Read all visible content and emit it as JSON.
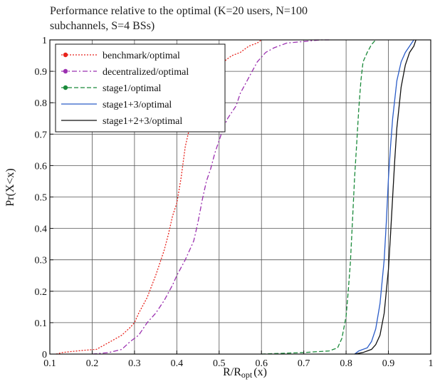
{
  "chart_data": {
    "type": "line",
    "title_lines": [
      "Performance relative to the optimal (K=20 users, N=100",
      "subchannels, S=4 BSs)"
    ],
    "xlabel_main": "R/R",
    "xlabel_sub": "opt",
    "xlabel_tail": "(x)",
    "ylabel": "Pr(X<x)",
    "xlim": [
      0.1,
      1
    ],
    "ylim": [
      0,
      1
    ],
    "grid": true,
    "legend_position": "top-left",
    "x_ticks": [
      "0.1",
      "0.2",
      "0.3",
      "0.4",
      "0.5",
      "0.6",
      "0.7",
      "0.8",
      "0.9",
      "1"
    ],
    "y_ticks": [
      "0",
      "0.1",
      "0.2",
      "0.3",
      "0.4",
      "0.5",
      "0.6",
      "0.7",
      "0.8",
      "0.9",
      "1"
    ],
    "series": [
      {
        "name": "benchmark/optimal",
        "color": "#e8231c",
        "style": "dotted",
        "legend_marker": true,
        "points": [
          [
            0.115,
            0.0
          ],
          [
            0.13,
            0.005
          ],
          [
            0.15,
            0.008
          ],
          [
            0.18,
            0.012
          ],
          [
            0.21,
            0.015
          ],
          [
            0.23,
            0.03
          ],
          [
            0.25,
            0.045
          ],
          [
            0.27,
            0.06
          ],
          [
            0.29,
            0.085
          ],
          [
            0.3,
            0.1
          ],
          [
            0.31,
            0.13
          ],
          [
            0.33,
            0.18
          ],
          [
            0.35,
            0.25
          ],
          [
            0.36,
            0.29
          ],
          [
            0.37,
            0.33
          ],
          [
            0.38,
            0.38
          ],
          [
            0.39,
            0.44
          ],
          [
            0.4,
            0.48
          ],
          [
            0.41,
            0.56
          ],
          [
            0.42,
            0.66
          ],
          [
            0.43,
            0.72
          ],
          [
            0.44,
            0.79
          ],
          [
            0.45,
            0.84
          ],
          [
            0.47,
            0.88
          ],
          [
            0.49,
            0.91
          ],
          [
            0.51,
            0.93
          ],
          [
            0.53,
            0.95
          ],
          [
            0.55,
            0.96
          ],
          [
            0.57,
            0.98
          ],
          [
            0.59,
            0.99
          ],
          [
            0.6,
            1.0
          ]
        ]
      },
      {
        "name": "decentralized/optimal",
        "color": "#9b30b0",
        "style": "dashdot",
        "legend_marker": true,
        "points": [
          [
            0.2,
            0.0
          ],
          [
            0.24,
            0.005
          ],
          [
            0.27,
            0.015
          ],
          [
            0.29,
            0.04
          ],
          [
            0.31,
            0.06
          ],
          [
            0.33,
            0.1
          ],
          [
            0.35,
            0.13
          ],
          [
            0.37,
            0.17
          ],
          [
            0.39,
            0.22
          ],
          [
            0.4,
            0.25
          ],
          [
            0.42,
            0.3
          ],
          [
            0.44,
            0.36
          ],
          [
            0.45,
            0.42
          ],
          [
            0.46,
            0.49
          ],
          [
            0.47,
            0.55
          ],
          [
            0.48,
            0.59
          ],
          [
            0.49,
            0.64
          ],
          [
            0.5,
            0.68
          ],
          [
            0.51,
            0.72
          ],
          [
            0.52,
            0.75
          ],
          [
            0.54,
            0.79
          ],
          [
            0.55,
            0.83
          ],
          [
            0.57,
            0.88
          ],
          [
            0.59,
            0.93
          ],
          [
            0.61,
            0.96
          ],
          [
            0.63,
            0.975
          ],
          [
            0.66,
            0.99
          ],
          [
            0.7,
            0.995
          ],
          [
            0.74,
            1.0
          ],
          [
            0.76,
            1.0
          ]
        ]
      },
      {
        "name": "stage1/optimal",
        "color": "#1a8a3a",
        "style": "dashed",
        "legend_marker": true,
        "points": [
          [
            0.6,
            0.0
          ],
          [
            0.7,
            0.005
          ],
          [
            0.76,
            0.01
          ],
          [
            0.78,
            0.02
          ],
          [
            0.79,
            0.05
          ],
          [
            0.8,
            0.12
          ],
          [
            0.805,
            0.2
          ],
          [
            0.81,
            0.29
          ],
          [
            0.815,
            0.42
          ],
          [
            0.82,
            0.56
          ],
          [
            0.825,
            0.67
          ],
          [
            0.83,
            0.78
          ],
          [
            0.835,
            0.87
          ],
          [
            0.84,
            0.93
          ],
          [
            0.85,
            0.96
          ],
          [
            0.86,
            0.985
          ],
          [
            0.87,
            1.0
          ]
        ]
      },
      {
        "name": "stage1+3/optimal",
        "color": "#2a5cc8",
        "style": "solid",
        "legend_marker": false,
        "points": [
          [
            0.82,
            0.0
          ],
          [
            0.83,
            0.01
          ],
          [
            0.85,
            0.02
          ],
          [
            0.86,
            0.04
          ],
          [
            0.87,
            0.08
          ],
          [
            0.88,
            0.16
          ],
          [
            0.89,
            0.3
          ],
          [
            0.895,
            0.42
          ],
          [
            0.9,
            0.56
          ],
          [
            0.905,
            0.66
          ],
          [
            0.91,
            0.75
          ],
          [
            0.92,
            0.87
          ],
          [
            0.93,
            0.93
          ],
          [
            0.94,
            0.96
          ],
          [
            0.95,
            0.98
          ],
          [
            0.96,
            1.0
          ]
        ]
      },
      {
        "name": "stage1+2+3/optimal",
        "color": "#111111",
        "style": "solid",
        "legend_marker": false,
        "points": [
          [
            0.82,
            0.0
          ],
          [
            0.84,
            0.005
          ],
          [
            0.86,
            0.015
          ],
          [
            0.87,
            0.03
          ],
          [
            0.88,
            0.06
          ],
          [
            0.89,
            0.13
          ],
          [
            0.9,
            0.27
          ],
          [
            0.905,
            0.38
          ],
          [
            0.91,
            0.5
          ],
          [
            0.915,
            0.62
          ],
          [
            0.92,
            0.72
          ],
          [
            0.93,
            0.85
          ],
          [
            0.94,
            0.92
          ],
          [
            0.95,
            0.96
          ],
          [
            0.96,
            0.98
          ],
          [
            0.965,
            1.0
          ]
        ]
      }
    ]
  }
}
